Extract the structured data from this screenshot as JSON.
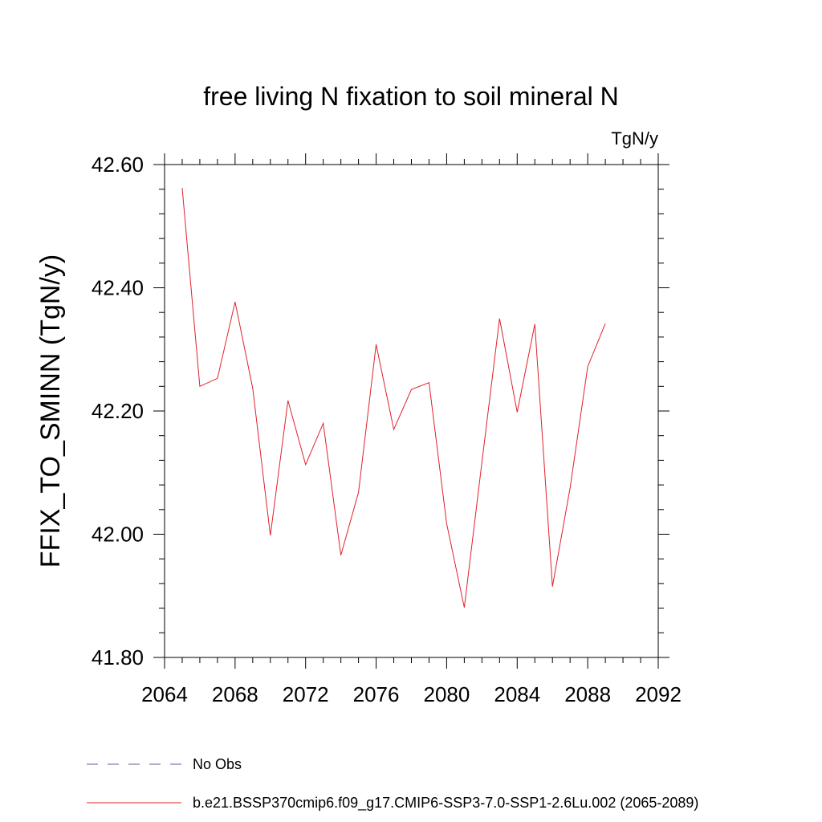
{
  "chart_data": {
    "type": "line",
    "title": "free living N fixation to soil mineral N",
    "units": "TgN/y",
    "xlabel": "",
    "ylabel": "FFIX_TO_SMINN  (TgN/y)",
    "xlim": [
      2064,
      2092
    ],
    "ylim": [
      41.8,
      42.6
    ],
    "x_ticks": [
      2064,
      2068,
      2072,
      2076,
      2080,
      2084,
      2088,
      2092
    ],
    "x_tick_labels": [
      "2064",
      "2068",
      "2072",
      "2076",
      "2080",
      "2084",
      "2088",
      "2092"
    ],
    "y_ticks": [
      41.8,
      42.0,
      42.2,
      42.4,
      42.6
    ],
    "y_tick_labels": [
      "41.80",
      "42.00",
      "42.20",
      "42.40",
      "42.60"
    ],
    "grid": false,
    "legend_position": "bottom",
    "series": [
      {
        "name": "No Obs",
        "color": "#6a5a9a",
        "style": "dashed",
        "x": [],
        "values": []
      },
      {
        "name": "b.e21.BSSP370cmip6.f09_g17.CMIP6-SSP3-7.0-SSP1-2.6Lu.002 (2065-2089)",
        "color": "#e0202a",
        "style": "solid",
        "x": [
          2065,
          2066,
          2067,
          2068,
          2069,
          2070,
          2071,
          2072,
          2073,
          2074,
          2075,
          2076,
          2077,
          2078,
          2079,
          2080,
          2081,
          2082,
          2083,
          2084,
          2085,
          2086,
          2087,
          2088,
          2089
        ],
        "values": [
          42.562,
          42.24,
          42.253,
          42.377,
          42.237,
          41.998,
          42.217,
          42.113,
          42.18,
          41.966,
          42.068,
          42.308,
          42.17,
          42.235,
          42.246,
          42.017,
          41.881,
          42.117,
          42.35,
          42.198,
          42.341,
          41.915,
          42.075,
          42.272,
          42.342
        ]
      }
    ]
  }
}
